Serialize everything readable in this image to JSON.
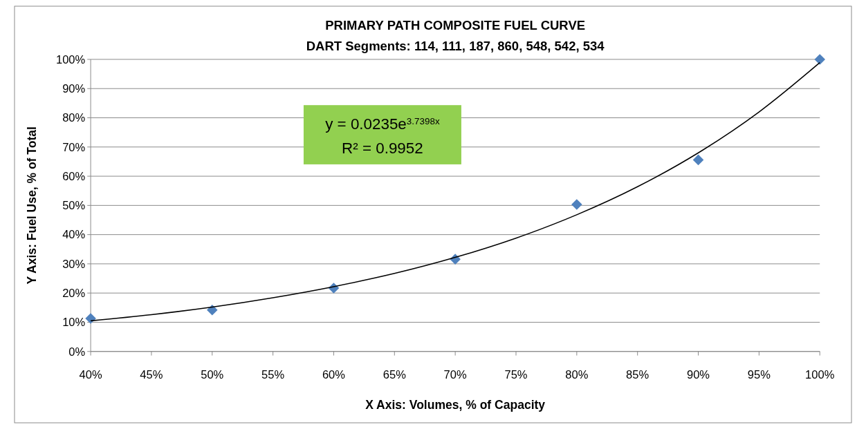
{
  "chart_data": {
    "type": "scatter",
    "title": "PRIMARY PATH COMPOSITE FUEL CURVE",
    "subtitle": "DART Segments: 114, 111, 187, 860, 548, 542, 534",
    "xlabel": "X Axis: Volumes, % of Capacity",
    "ylabel": "Y Axis: Fuel Use, % of Total",
    "xlim": [
      40,
      100
    ],
    "xticks": [
      {
        "value": 40,
        "label": "40%"
      },
      {
        "value": 45,
        "label": "45%"
      },
      {
        "value": 50,
        "label": "50%"
      },
      {
        "value": 55,
        "label": "55%"
      },
      {
        "value": 60,
        "label": "60%"
      },
      {
        "value": 65,
        "label": "65%"
      },
      {
        "value": 70,
        "label": "70%"
      },
      {
        "value": 75,
        "label": "75%"
      },
      {
        "value": 80,
        "label": "80%"
      },
      {
        "value": 85,
        "label": "85%"
      },
      {
        "value": 90,
        "label": "90%"
      },
      {
        "value": 95,
        "label": "95%"
      },
      {
        "value": 100,
        "label": "100%"
      }
    ],
    "ylim": [
      0,
      100
    ],
    "yticks": [
      {
        "value": 0,
        "label": "0%"
      },
      {
        "value": 10,
        "label": "10%"
      },
      {
        "value": 20,
        "label": "20%"
      },
      {
        "value": 30,
        "label": "30%"
      },
      {
        "value": 40,
        "label": "40%"
      },
      {
        "value": 50,
        "label": "50%"
      },
      {
        "value": 60,
        "label": "60%"
      },
      {
        "value": 70,
        "label": "70%"
      },
      {
        "value": 80,
        "label": "80%"
      },
      {
        "value": 90,
        "label": "90%"
      },
      {
        "value": 100,
        "label": "100%"
      }
    ],
    "grid": "y",
    "series": [
      {
        "marker": "diamond",
        "color": "#4f81bd",
        "x": [
          40,
          50,
          60,
          70,
          80,
          90,
          100
        ],
        "values": [
          11.3,
          14.2,
          21.7,
          31.6,
          50.3,
          65.6,
          100
        ]
      },
      {
        "type": "line",
        "marker": "none",
        "line_style": "solid",
        "color": "#000000",
        "x": [
          40,
          45,
          50,
          55,
          60,
          65,
          70,
          75,
          80,
          85,
          90,
          95,
          100
        ],
        "values": [
          10.5,
          12.6,
          15.2,
          18.4,
          22.2,
          26.7,
          32.2,
          38.8,
          46.8,
          56.4,
          68,
          82,
          98.9
        ]
      }
    ],
    "annotations": [
      "y = 0.0235e$^{3.7398x}$",
      "R² = 0.9952"
    ]
  }
}
